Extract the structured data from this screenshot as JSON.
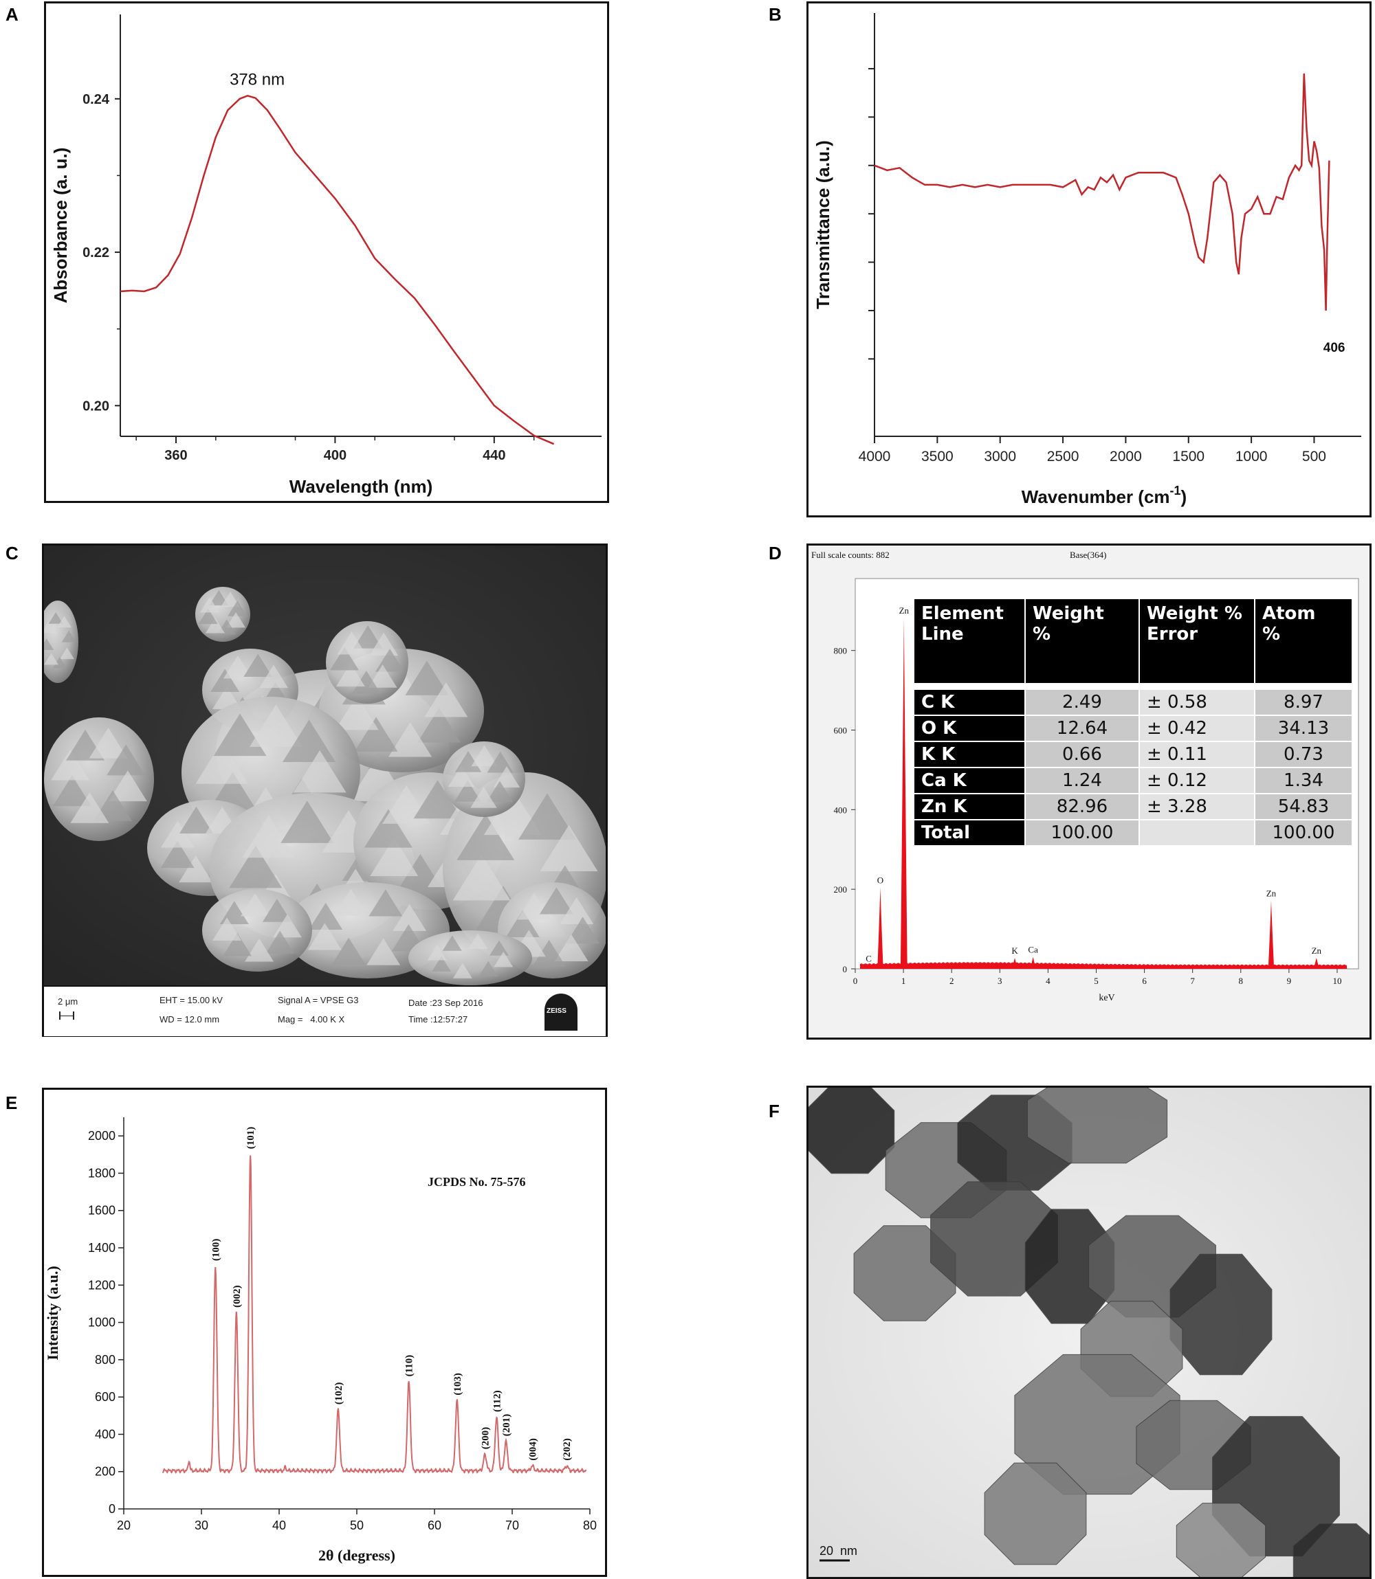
{
  "panel_labels": [
    "A",
    "B",
    "C",
    "D",
    "E",
    "F"
  ],
  "chart_data": [
    {
      "panel": "A",
      "type": "line",
      "xlabel": "Wavelength (nm)",
      "ylabel": "Absorbance (a. u.)",
      "xlim": [
        346,
        467
      ],
      "ylim": [
        0.196,
        0.251
      ],
      "xticks": [
        360,
        400,
        440
      ],
      "yticks": [
        0.2,
        0.22,
        0.24
      ],
      "ytick_labels": [
        "0.20",
        "0.22",
        "0.24"
      ],
      "annotations": [
        {
          "text": "378 nm",
          "x": 378,
          "y": 0.2404
        }
      ],
      "series": [
        {
          "color": "#c0272d",
          "x": [
            346,
            349,
            352,
            355,
            358,
            361,
            364,
            367,
            370,
            373,
            376,
            378,
            380,
            383,
            386,
            390,
            395,
            400,
            405,
            410,
            415,
            420,
            425,
            430,
            435,
            440,
            445,
            450,
            455
          ],
          "y": [
            0.2149,
            0.215,
            0.2149,
            0.2154,
            0.217,
            0.2198,
            0.2245,
            0.23,
            0.235,
            0.2385,
            0.24,
            0.2404,
            0.2401,
            0.2385,
            0.2362,
            0.233,
            0.23,
            0.227,
            0.2235,
            0.2192,
            0.2165,
            0.214,
            0.2106,
            0.207,
            0.2035,
            0.2,
            0.198,
            0.1961,
            0.195
          ]
        }
      ]
    },
    {
      "panel": "B",
      "type": "line",
      "xlabel": "Wavenumber (cm",
      "xlabel_sup": "-1",
      "xlabel_end": ")",
      "ylabel": "Transmittance (a.u.)",
      "xlim": [
        4000,
        300
      ],
      "ylim": [
        -32,
        143
      ],
      "xticks": [
        4000,
        3500,
        3000,
        2500,
        2000,
        1500,
        1000,
        500
      ],
      "yticks": [
        0,
        20,
        40,
        60,
        80,
        100,
        120
      ],
      "annotations": [
        {
          "text": "406",
          "x": 406,
          "y": 3
        }
      ],
      "series": [
        {
          "color": "#c0272d",
          "x": [
            4000,
            3900,
            3800,
            3700,
            3600,
            3500,
            3400,
            3300,
            3200,
            3100,
            3000,
            2900,
            2800,
            2700,
            2600,
            2500,
            2400,
            2350,
            2300,
            2250,
            2200,
            2150,
            2100,
            2050,
            2000,
            1950,
            1900,
            1800,
            1700,
            1600,
            1550,
            1500,
            1450,
            1420,
            1380,
            1350,
            1300,
            1250,
            1200,
            1150,
            1120,
            1100,
            1080,
            1050,
            1000,
            950,
            900,
            850,
            800,
            750,
            700,
            650,
            620,
            600,
            580,
            560,
            540,
            520,
            500,
            480,
            460,
            440,
            420,
            406,
            395,
            380
          ],
          "y": [
            80,
            78,
            79,
            75,
            72,
            72,
            71,
            72,
            71,
            72,
            71,
            72,
            72,
            72,
            72,
            71,
            74,
            68,
            71,
            70,
            75,
            73,
            76,
            70,
            75,
            76,
            77,
            77,
            77,
            75,
            68,
            60,
            48,
            42,
            40,
            50,
            73,
            76,
            73,
            60,
            40,
            35,
            50,
            60,
            62,
            67,
            60,
            60,
            67,
            66,
            75,
            80,
            78,
            80,
            118,
            95,
            82,
            80,
            90,
            86,
            79,
            55,
            45,
            20,
            50,
            82
          ]
        }
      ]
    },
    {
      "panel": "D",
      "type": "bar",
      "header_left": "Full scale counts: 882",
      "header_right": "Base(364)",
      "xlabel": "keV",
      "xlim": [
        0,
        10.3
      ],
      "ylim": [
        0,
        960
      ],
      "xticks": [
        0,
        1,
        2,
        3,
        4,
        5,
        6,
        7,
        8,
        9,
        10
      ],
      "yticks": [
        0,
        200,
        400,
        600,
        800
      ],
      "peaks": [
        {
          "label": "C",
          "energy": 0.28,
          "counts": 8
        },
        {
          "label": "O",
          "energy": 0.52,
          "counts": 205
        },
        {
          "label": "Zn",
          "energy": 1.01,
          "counts": 882
        },
        {
          "label": "K",
          "energy": 3.31,
          "counts": 28
        },
        {
          "label": "Ca",
          "energy": 3.69,
          "counts": 30
        },
        {
          "label": "Zn",
          "energy": 8.63,
          "counts": 172
        },
        {
          "label": "Zn",
          "energy": 9.57,
          "counts": 28
        }
      ],
      "table": {
        "headers": [
          [
            "Element",
            "Line"
          ],
          [
            "Weight",
            "%"
          ],
          [
            "Weight %",
            "Error"
          ],
          [
            "Atom",
            "%"
          ]
        ],
        "rows": [
          [
            "C K",
            "2.49",
            "± 0.58",
            "8.97"
          ],
          [
            "O K",
            "12.64",
            "± 0.42",
            "34.13"
          ],
          [
            "K K",
            "0.66",
            "± 0.11",
            "0.73"
          ],
          [
            "Ca K",
            "1.24",
            "± 0.12",
            "1.34"
          ],
          [
            "Zn K",
            "82.96",
            "± 3.28",
            "54.83"
          ],
          [
            "Total",
            "100.00",
            "",
            "100.00"
          ]
        ]
      }
    },
    {
      "panel": "E",
      "type": "line",
      "xlabel": "2θ (degress)",
      "ylabel": "Intensity (a.u.)",
      "annotation": "JCPDS No. 75-576",
      "xlim": [
        20,
        80
      ],
      "ylim": [
        0,
        2100
      ],
      "xticks": [
        20,
        30,
        40,
        50,
        60,
        70,
        80
      ],
      "yticks": [
        0,
        200,
        400,
        600,
        800,
        1000,
        1200,
        1400,
        1600,
        1800,
        2000
      ],
      "peaks": [
        {
          "hkl": "(100)",
          "two_theta": 31.8,
          "intensity": 1300
        },
        {
          "hkl": "(002)",
          "two_theta": 34.5,
          "intensity": 1050
        },
        {
          "hkl": "(101)",
          "two_theta": 36.3,
          "intensity": 1900
        },
        {
          "hkl": "(102)",
          "two_theta": 47.6,
          "intensity": 530
        },
        {
          "hkl": "(110)",
          "two_theta": 56.7,
          "intensity": 680
        },
        {
          "hkl": "(103)",
          "two_theta": 62.9,
          "intensity": 580
        },
        {
          "hkl": "(200)",
          "two_theta": 66.5,
          "intensity": 290
        },
        {
          "hkl": "(112)",
          "two_theta": 68.0,
          "intensity": 490
        },
        {
          "hkl": "(201)",
          "two_theta": 69.2,
          "intensity": 360
        },
        {
          "hkl": "(004)",
          "two_theta": 72.6,
          "intensity": 230
        },
        {
          "hkl": "(202)",
          "two_theta": 77.0,
          "intensity": 230
        }
      ],
      "baseline": 205,
      "minor_peaks": [
        {
          "two_theta": 28.4,
          "intensity": 260
        },
        {
          "two_theta": 40.8,
          "intensity": 225
        }
      ],
      "color": "#d2686a"
    }
  ],
  "sem": {
    "scale_bar": "2 μm",
    "eht": "EHT = 15.00 kV",
    "wd": "WD = 12.0 mm",
    "signal": "Signal A = VPSE G3",
    "mag": "Mag =   4.00 K X",
    "date": "Date :23 Sep 2016",
    "time": "Time :12:57:27",
    "logo": "ZEISS"
  },
  "tem": {
    "scale_bar": "20  nm"
  },
  "colors": {
    "curve": "#c0272d",
    "edx": "#e8101a",
    "xrd": "#d2686a"
  }
}
